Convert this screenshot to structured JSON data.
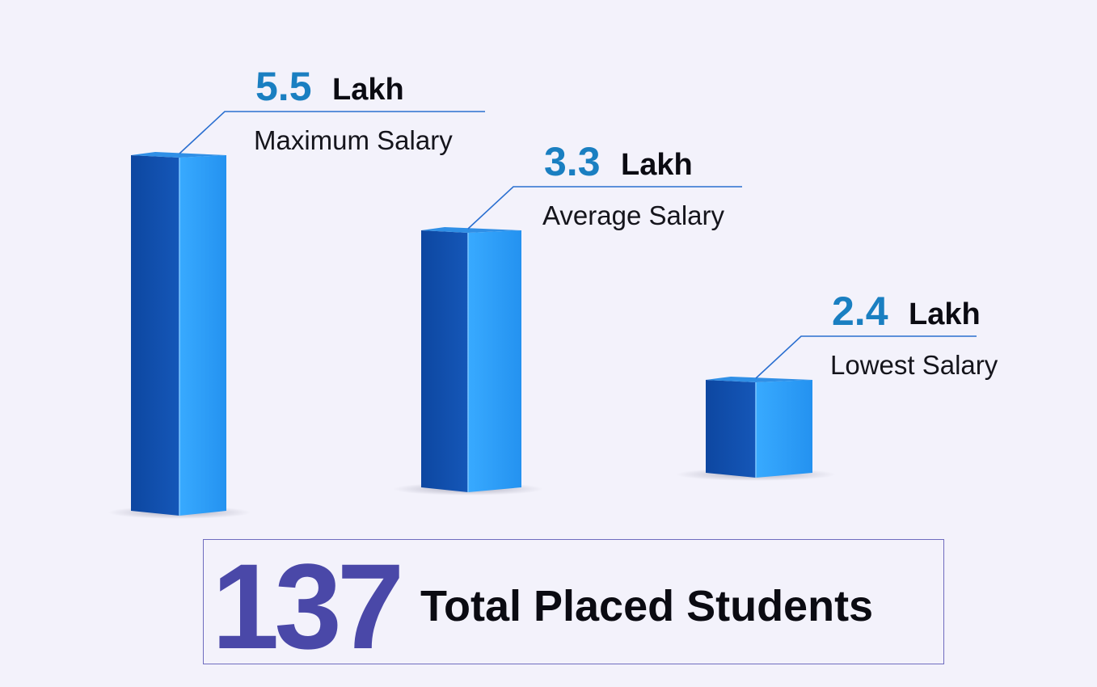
{
  "chart_data": {
    "type": "bar",
    "categories": [
      "Maximum Salary",
      "Average Salary",
      "Lowest Salary"
    ],
    "values": [
      5.5,
      3.3,
      2.4
    ],
    "value_labels": [
      "5.5",
      "3.3",
      "2.4"
    ],
    "unit": "Lakh",
    "title": "",
    "xlabel": "",
    "ylabel": "",
    "colors": {
      "front": "#0f4fa8",
      "side": "#279bf5",
      "top": "#2f8fe6",
      "leader": "#2a6fd0"
    }
  },
  "summary": {
    "number": "137",
    "label": "Total Placed Students"
  }
}
